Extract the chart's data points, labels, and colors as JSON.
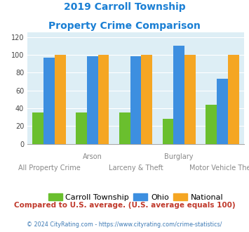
{
  "title_line1": "2019 Carroll Township",
  "title_line2": "Property Crime Comparison",
  "title_color": "#1a7fd4",
  "categories": [
    "All Property Crime",
    "Arson",
    "Larceny & Theft",
    "Burglary",
    "Motor Vehicle Theft"
  ],
  "carroll": [
    35,
    35,
    35,
    28,
    44
  ],
  "ohio": [
    97,
    98,
    98,
    110,
    73
  ],
  "national": [
    100,
    100,
    100,
    100,
    100
  ],
  "bar_colors": {
    "carroll": "#6abf2e",
    "ohio": "#3d8fe0",
    "national": "#f5a623"
  },
  "ylim": [
    0,
    125
  ],
  "yticks": [
    0,
    20,
    40,
    60,
    80,
    100,
    120
  ],
  "bg_color": "#ddeef5",
  "footer_text": "Compared to U.S. average. (U.S. average equals 100)",
  "footer_color": "#c0392b",
  "copyright_text": "© 2024 CityRating.com - https://www.cityrating.com/crime-statistics/",
  "copyright_color": "#3d7ab5",
  "legend_labels": [
    "Carroll Township",
    "Ohio",
    "National"
  ],
  "x_label_top": [
    "",
    "Arson",
    "",
    "Burglary",
    ""
  ],
  "x_label_bottom": [
    "All Property Crime",
    "",
    "Larceny & Theft",
    "",
    "Motor Vehicle Theft"
  ]
}
